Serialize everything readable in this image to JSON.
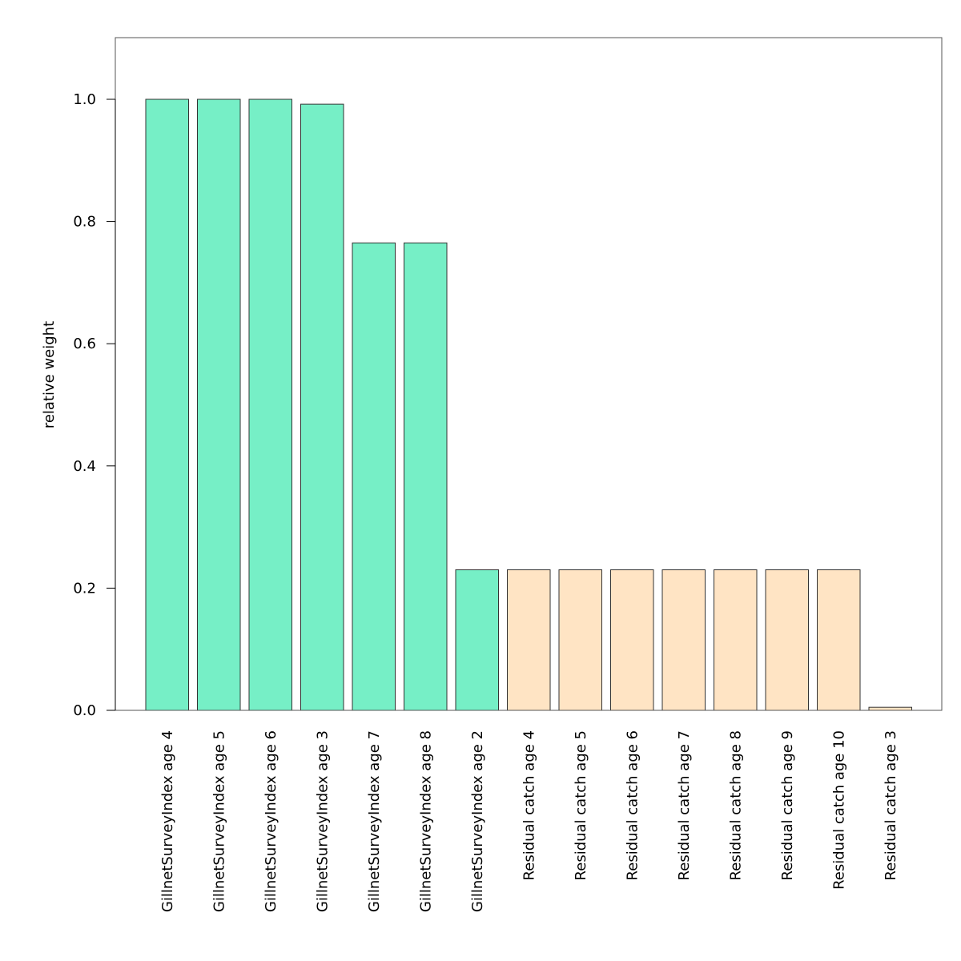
{
  "chart_data": {
    "type": "bar",
    "title": "",
    "xlabel": "",
    "ylabel": "relative weight",
    "ylim": [
      0,
      1.1
    ],
    "yticks": [
      0.0,
      0.2,
      0.4,
      0.6,
      0.8,
      1.0
    ],
    "ytick_labels": [
      "0.0",
      "0.2",
      "0.4",
      "0.6",
      "0.8",
      "1.0"
    ],
    "grid": false,
    "categories": [
      "GillnetSurveyIndex age 4",
      "GillnetSurveyIndex age 5",
      "GillnetSurveyIndex age 6",
      "GillnetSurveyIndex age 3",
      "GillnetSurveyIndex age 7",
      "GillnetSurveyIndex age 8",
      "GillnetSurveyIndex age 2",
      "Residual catch age 4",
      "Residual catch age 5",
      "Residual catch age 6",
      "Residual catch age 7",
      "Residual catch age 8",
      "Residual catch age 9",
      "Residual catch age 10",
      "Residual catch age 3"
    ],
    "values": [
      1.0,
      1.0,
      1.0,
      0.992,
      0.765,
      0.765,
      0.23,
      0.23,
      0.23,
      0.23,
      0.23,
      0.23,
      0.23,
      0.23,
      0.005
    ],
    "groups": [
      "survey",
      "survey",
      "survey",
      "survey",
      "survey",
      "survey",
      "survey",
      "catch",
      "catch",
      "catch",
      "catch",
      "catch",
      "catch",
      "catch",
      "catch"
    ],
    "colors": {
      "survey": "#76efc6",
      "catch": "#ffe4c4",
      "outline": "#333333"
    }
  }
}
